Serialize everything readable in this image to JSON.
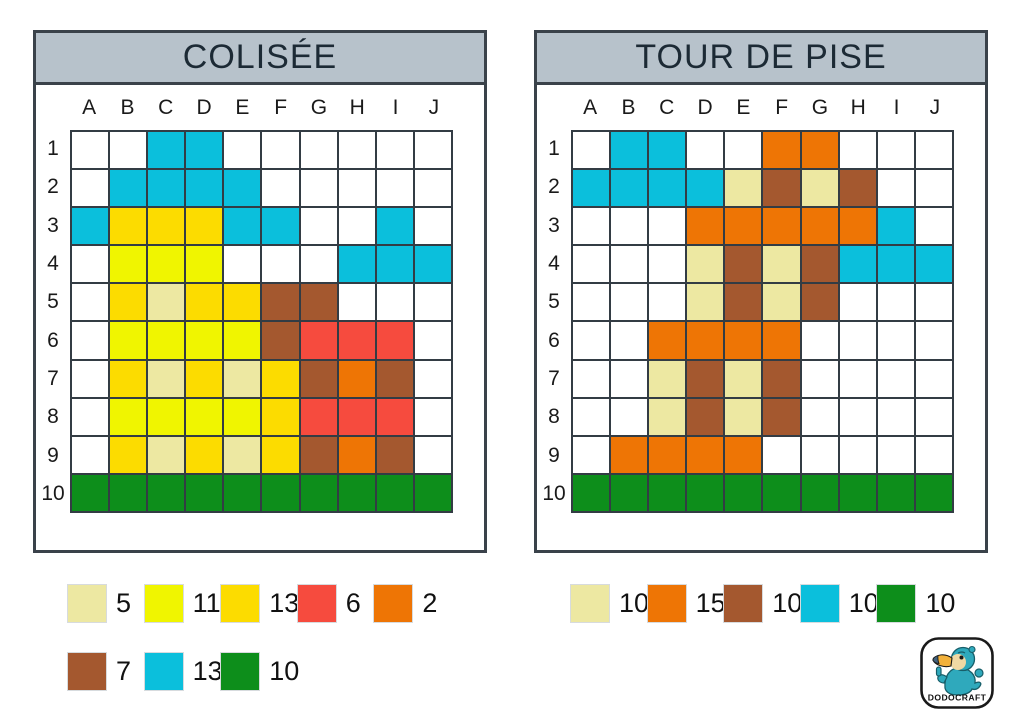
{
  "palette": {
    "W": "#FFFFFF",
    "C": "#0BBFDC",
    "G": "#FCDC00",
    "Y": "#F0F500",
    "P": "#EDE8A2",
    "R": "#F64B3E",
    "O": "#EE7505",
    "B": "#A4582F",
    "N": "#0D8E1B"
  },
  "panels": [
    {
      "title": "COLISÉE",
      "columns": [
        "A",
        "B",
        "C",
        "D",
        "E",
        "F",
        "G",
        "H",
        "I",
        "J"
      ],
      "rows": [
        "1",
        "2",
        "3",
        "4",
        "5",
        "6",
        "7",
        "8",
        "9",
        "10"
      ],
      "cells": [
        "WWCCWWWWWW",
        "WCCCCWWWWW",
        "CGGGCCWWCW",
        "WYYYWWWCCC",
        "WGPGGBBWWW",
        "WYYYYBRRRW",
        "WGPGPGBOBW",
        "WYYYYGRRRW",
        "WGPGPGBOBW",
        "NNNNNNNNNN"
      ]
    },
    {
      "title": "TOUR DE PISE",
      "columns": [
        "A",
        "B",
        "C",
        "D",
        "E",
        "F",
        "G",
        "H",
        "I",
        "J"
      ],
      "rows": [
        "1",
        "2",
        "3",
        "4",
        "5",
        "6",
        "7",
        "8",
        "9",
        "10"
      ],
      "cells": [
        "WCCWWOOWWW",
        "CCCCPBPBWW",
        "WWWOOOOOCW",
        "WWWPBPBCCC",
        "WWWPBPBWWW",
        "WWOOOOWWWW",
        "WWPBPBWWWW",
        "WWPBPBWWWW",
        "WOOOOWWWWW",
        "NNNNNNNNNN"
      ]
    }
  ],
  "legends": {
    "left1": [
      {
        "key": "P",
        "count": "5"
      },
      {
        "key": "Y",
        "count": "11"
      },
      {
        "key": "G",
        "count": "13"
      },
      {
        "key": "R",
        "count": "6"
      },
      {
        "key": "O",
        "count": "2"
      }
    ],
    "left2": [
      {
        "key": "B",
        "count": "7"
      },
      {
        "key": "C",
        "count": "13"
      },
      {
        "key": "N",
        "count": "10"
      }
    ],
    "right1": [
      {
        "key": "P",
        "count": "10"
      },
      {
        "key": "O",
        "count": "15"
      },
      {
        "key": "B",
        "count": "10"
      },
      {
        "key": "C",
        "count": "10"
      },
      {
        "key": "N",
        "count": "10"
      }
    ]
  },
  "logo": {
    "text": "DODOCRAFT",
    "colors": {
      "body": "#2FA9BC",
      "body_outline": "#175E69",
      "face": "#F0D9A4",
      "beak": "#F2B13B",
      "beak_tip": "#40607B"
    }
  }
}
